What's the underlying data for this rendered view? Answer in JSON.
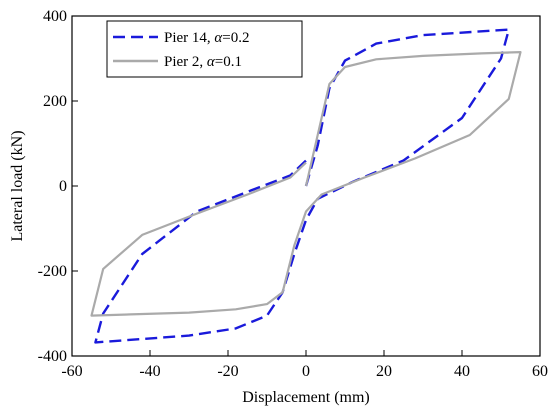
{
  "chart_data": {
    "type": "line",
    "xlabel": "Displacement (mm)",
    "ylabel": "Lateral load (kN)",
    "xlim": [
      -60,
      60
    ],
    "ylim": [
      -400,
      400
    ],
    "x_ticks": [
      -60,
      -40,
      -20,
      0,
      20,
      40,
      60
    ],
    "y_ticks": [
      -400,
      -200,
      0,
      200,
      400
    ],
    "grid": false,
    "legend_position": "top-left",
    "series": [
      {
        "name": "Pier 14, α=0.2",
        "legend_prefix": "Pier 14, ",
        "legend_symbol": "α",
        "legend_suffix": "=0.2",
        "color": "#1a1adb",
        "dash": "dashed",
        "x": [
          0,
          3,
          6,
          10,
          18,
          30,
          52,
          50,
          40,
          25,
          12,
          3,
          0,
          -3,
          -6,
          -10,
          -18,
          -30,
          -54,
          -52,
          -42,
          -28,
          -14,
          -4,
          0
        ],
        "y": [
          0,
          95,
          230,
          295,
          335,
          355,
          368,
          300,
          160,
          60,
          10,
          -30,
          -80,
          -160,
          -250,
          -305,
          -335,
          -352,
          -368,
          -300,
          -160,
          -60,
          -10,
          25,
          60
        ]
      },
      {
        "name": "Pier 2, α=0.1",
        "legend_prefix": "Pier 2, ",
        "legend_symbol": "α",
        "legend_suffix": "=0.1",
        "color": "#aaaaaa",
        "dash": "solid",
        "x": [
          0,
          3,
          6,
          10,
          18,
          30,
          45,
          55,
          52,
          42,
          28,
          15,
          4,
          0,
          -3,
          -6,
          -10,
          -18,
          -30,
          -45,
          -55,
          -52,
          -42,
          -28,
          -15,
          -4,
          0
        ],
        "y": [
          0,
          120,
          240,
          280,
          298,
          306,
          312,
          315,
          205,
          120,
          65,
          20,
          -20,
          -60,
          -140,
          -250,
          -278,
          -290,
          -298,
          -302,
          -305,
          -195,
          -115,
          -65,
          -20,
          20,
          55
        ]
      }
    ]
  }
}
